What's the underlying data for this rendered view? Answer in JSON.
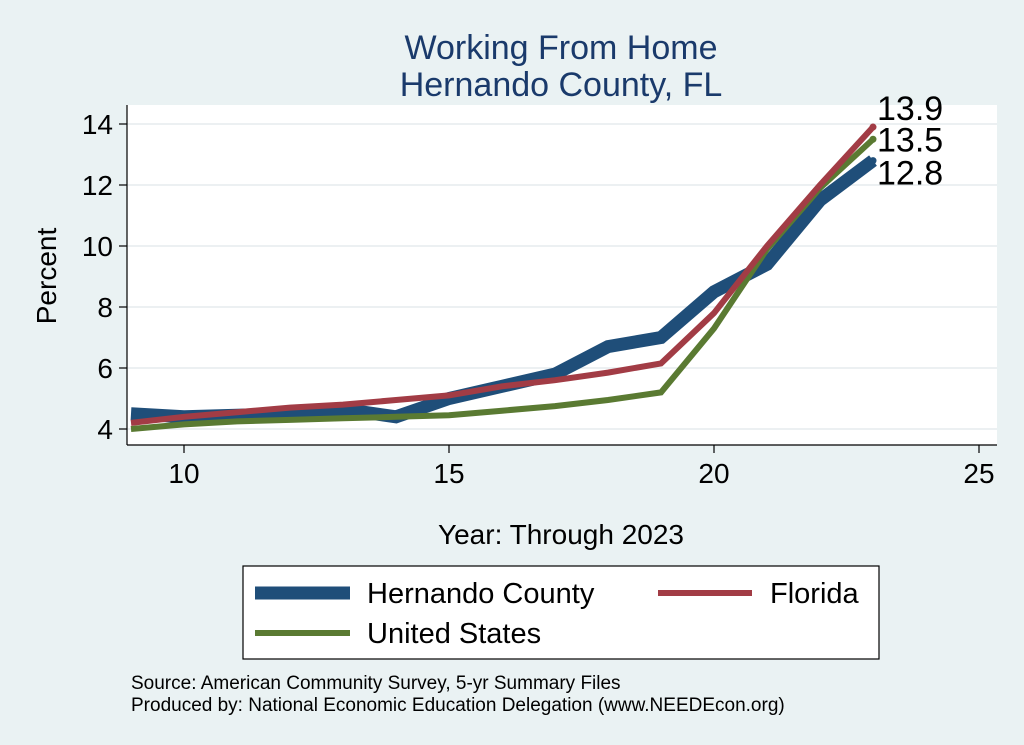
{
  "chart_data": {
    "type": "line",
    "title": [
      "Working From Home",
      "Hernando County, FL"
    ],
    "xlabel": "Year: Through 2023",
    "ylabel": "Percent",
    "xlim": [
      9,
      25
    ],
    "ylim": [
      3.5,
      14.5
    ],
    "x_ticks": [
      10,
      15,
      20,
      25
    ],
    "y_ticks": [
      4,
      6,
      8,
      10,
      12,
      14
    ],
    "grid": "horizontal",
    "legend_position": "bottom",
    "x": [
      9,
      10,
      11,
      12,
      13,
      14,
      15,
      16,
      17,
      18,
      19,
      20,
      21,
      22,
      23
    ],
    "series": [
      {
        "name": "Hernando County",
        "color": "#1f4e79",
        "values": [
          4.5,
          4.4,
          4.45,
          4.5,
          4.65,
          4.4,
          5.0,
          5.4,
          5.8,
          6.7,
          7.0,
          8.5,
          9.4,
          11.5,
          12.8
        ],
        "end_label": "12.8"
      },
      {
        "name": "Florida",
        "color": "#a23c45",
        "values": [
          4.2,
          4.4,
          4.55,
          4.7,
          4.8,
          4.95,
          5.1,
          5.4,
          5.6,
          5.85,
          6.15,
          7.8,
          10.0,
          12.0,
          13.9
        ],
        "end_label": "13.9"
      },
      {
        "name": "United States",
        "color": "#5a7a32",
        "values": [
          4.0,
          4.15,
          4.25,
          4.3,
          4.35,
          4.4,
          4.45,
          4.6,
          4.75,
          4.95,
          5.2,
          7.3,
          9.9,
          11.9,
          13.5
        ],
        "end_label": "13.5"
      }
    ],
    "notes": [
      "Source: American Community Survey, 5-yr Summary Files",
      "Produced by: National Economic Education Delegation (www.NEEDEcon.org)"
    ]
  }
}
